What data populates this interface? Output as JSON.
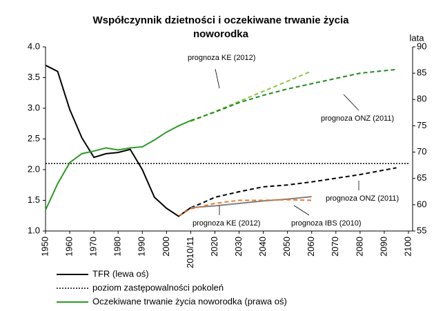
{
  "chart_data": {
    "type": "line",
    "title": "Współczynnik dzietności i oczekiwane trwanie życia",
    "title_line2": "noworodka",
    "y2_label": "lata",
    "xlim": [
      1950,
      2100
    ],
    "xticks": [
      1950,
      1960,
      1970,
      1980,
      1990,
      2000,
      {
        "value": 2010,
        "label": "2010/11"
      },
      2020,
      2030,
      2040,
      2050,
      2060,
      2070,
      2080,
      2090,
      2100
    ],
    "ylim": [
      1,
      4
    ],
    "yticks": [
      {
        "value": 1,
        "label": "1.0"
      },
      1.5,
      {
        "value": 2,
        "label": "2.0"
      },
      2.5,
      {
        "value": 3,
        "label": "3.0"
      },
      3.5,
      {
        "value": 4,
        "label": "4.0"
      }
    ],
    "y2lim": [
      55,
      90
    ],
    "y2ticks": [
      55,
      60,
      65,
      70,
      75,
      80,
      85,
      90
    ],
    "grid": false,
    "series": [
      {
        "name": "TFR (lewa oś)",
        "color": "#000000",
        "style": "solid",
        "x": [
          1950,
          1955,
          1960,
          1965,
          1970,
          1975,
          1980,
          1985,
          1990,
          1995,
          2000,
          2005,
          2010
        ],
        "values": [
          3.7,
          3.6,
          2.98,
          2.52,
          2.2,
          2.26,
          2.28,
          2.33,
          2.0,
          1.55,
          1.37,
          1.24,
          1.38
        ]
      },
      {
        "name": "poziom zastępowalności pokoleń",
        "color": "#000000",
        "style": "dotted",
        "x": [
          1950,
          2100
        ],
        "values": [
          2.1,
          2.1
        ]
      },
      {
        "name": "Oczekiwane trwanie życia noworodka (prawa oś)",
        "color": "#2a9a22",
        "style": "solid",
        "axis": "y2",
        "x": [
          1950,
          1955,
          1960,
          1965,
          1970,
          1975,
          1980,
          1985,
          1990,
          1995,
          2000,
          2005,
          2010
        ],
        "values": [
          59,
          64,
          68,
          69.7,
          70.2,
          70.8,
          70.4,
          70.8,
          71,
          72.3,
          73.8,
          75,
          76
        ]
      },
      {
        "color": "#8cc63f",
        "style": "dashed",
        "axis": "y2",
        "x": [
          2010,
          2060
        ],
        "values": [
          75.8,
          85.4
        ]
      },
      {
        "color": "#1e8c1e",
        "style": "dashed",
        "axis": "y2",
        "x": [
          2010,
          2020,
          2030,
          2040,
          2050,
          2060,
          2070,
          2080,
          2095
        ],
        "values": [
          76,
          77.6,
          79.4,
          80.8,
          82,
          83,
          84,
          85,
          85.7
        ]
      },
      {
        "color": "#000000",
        "style": "dashed",
        "x": [
          2010,
          2015,
          2020,
          2030,
          2040,
          2050,
          2060,
          2070,
          2080,
          2095
        ],
        "values": [
          1.38,
          1.46,
          1.55,
          1.64,
          1.72,
          1.75,
          1.8,
          1.86,
          1.92,
          2.03
        ]
      },
      {
        "color": "#808080",
        "style": "solid",
        "x": [
          2010,
          2020,
          2030,
          2040,
          2050,
          2060
        ],
        "values": [
          1.38,
          1.41,
          1.45,
          1.49,
          1.52,
          1.56
        ]
      },
      {
        "color": "#e8782a",
        "style": "dashed",
        "x": [
          2005,
          2010,
          2020,
          2030,
          2040,
          2050,
          2060
        ],
        "values": [
          1.25,
          1.36,
          1.45,
          1.5,
          1.5,
          1.51,
          1.5
        ]
      }
    ],
    "annotations": [
      "prognoza KE (2012)",
      "prognoza ONZ (2011)",
      "prognoza ONZ (2011)",
      "prognoza KE (2012)",
      "prognoza IBS (2010)"
    ]
  }
}
